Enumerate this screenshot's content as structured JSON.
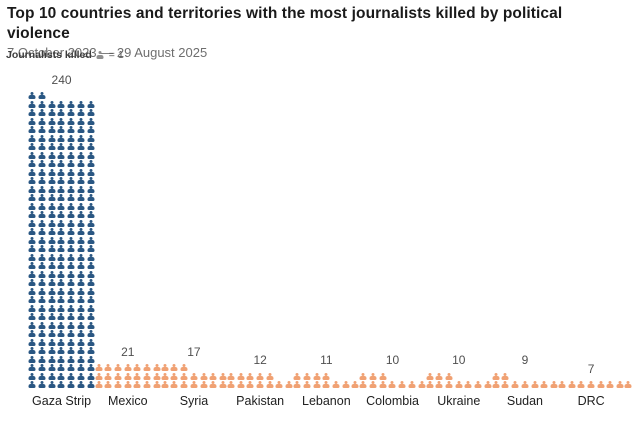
{
  "header": {
    "title": "Top 10 countries and territories with the most journalists killed by political violence",
    "subtitle": "7 October 2023 — 29 August 2025"
  },
  "legend": {
    "label": "Journalists killed",
    "icon": "person-icon",
    "unit_suffix": "= 1"
  },
  "colors": {
    "highlight": "#2a5783",
    "default": "#f0a173",
    "legend_icon": "#8f8f8f",
    "title_text": "#1a1a1a",
    "subtitle_text": "#6e6e6e",
    "value_text": "#4f4f4f",
    "category_text": "#212121"
  },
  "chart_data": {
    "type": "pictogram",
    "title": "Top 10 countries and territories with the most journalists killed by political violence",
    "subtitle": "7 October 2023 — 29 August 2025",
    "unit_per_icon": 1,
    "icons_per_row": 7,
    "categories": [
      "Gaza Strip",
      "Mexico",
      "Syria",
      "Pakistan",
      "Lebanon",
      "Colombia",
      "Ukraine",
      "Sudan",
      "DRC"
    ],
    "values": [
      240,
      21,
      17,
      12,
      11,
      10,
      10,
      9,
      7
    ],
    "highlighted_category": "Gaza Strip",
    "clipped_tenth_column": {
      "visible_icons": 2,
      "note": "tenth column partially visible at right edge, label and value cut off"
    }
  }
}
